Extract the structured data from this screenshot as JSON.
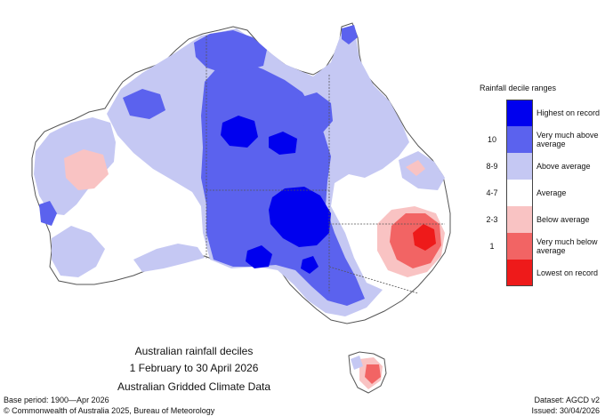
{
  "caption": {
    "title": "Australian rainfall deciles",
    "period": "1 February to 30 April 2026",
    "source": "Australian Gridded Climate Data"
  },
  "footer": {
    "base_period": "Base period: 1900—Apr 2026",
    "copyright": "© Commonwealth of Australia 2025, Bureau of Meteorology",
    "dataset": "Dataset: AGCD v2",
    "issued": "Issued: 30/04/2026"
  },
  "legend": {
    "title": "Rainfall decile ranges",
    "items": [
      {
        "decile": "",
        "label": "Highest on record",
        "color": "#0000ee"
      },
      {
        "decile": "10",
        "label": "Very much above average",
        "color": "#5b62ee"
      },
      {
        "decile": "8-9",
        "label": "Above average",
        "color": "#c5c8f3"
      },
      {
        "decile": "4-7",
        "label": "Average",
        "color": "#ffffff"
      },
      {
        "decile": "2-3",
        "label": "Below average",
        "color": "#f9c3c3"
      },
      {
        "decile": "1",
        "label": "Very much below average",
        "color": "#f26464"
      },
      {
        "decile": "",
        "label": "Lowest on record",
        "color": "#ee1a1a"
      }
    ]
  }
}
